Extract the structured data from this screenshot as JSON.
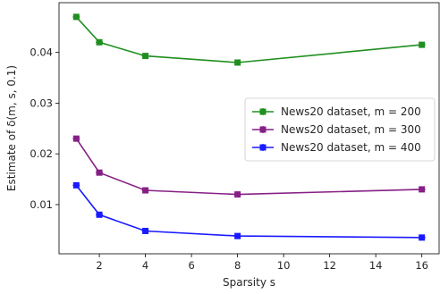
{
  "chart_data": {
    "type": "line",
    "title": "",
    "xlabel": "Sparsity s",
    "ylabel": "Estimate of δ(m, s, 0.1)",
    "xlim": [
      0.25,
      16.75
    ],
    "ylim": [
      0.0003,
      0.0498
    ],
    "xticks": [
      2,
      4,
      6,
      8,
      10,
      12,
      14,
      16
    ],
    "yticks": [
      0.01,
      0.02,
      0.03,
      0.04
    ],
    "ytick_labels": [
      "0.01",
      "0.02",
      "0.03",
      "0.04"
    ],
    "grid": false,
    "legend_position": "center-right",
    "x": [
      1,
      2,
      4,
      8,
      16
    ],
    "series": [
      {
        "name": "News20 dataset, m = 200",
        "color": "#1f8f1f",
        "values": [
          0.047,
          0.042,
          0.0393,
          0.038,
          0.0415
        ]
      },
      {
        "name": "News20 dataset, m = 300",
        "color": "#861f86",
        "values": [
          0.023,
          0.0163,
          0.0128,
          0.012,
          0.013
        ]
      },
      {
        "name": "News20 dataset, m = 400",
        "color": "#1a1aff",
        "values": [
          0.0138,
          0.008,
          0.0048,
          0.0038,
          0.0035
        ]
      }
    ]
  }
}
